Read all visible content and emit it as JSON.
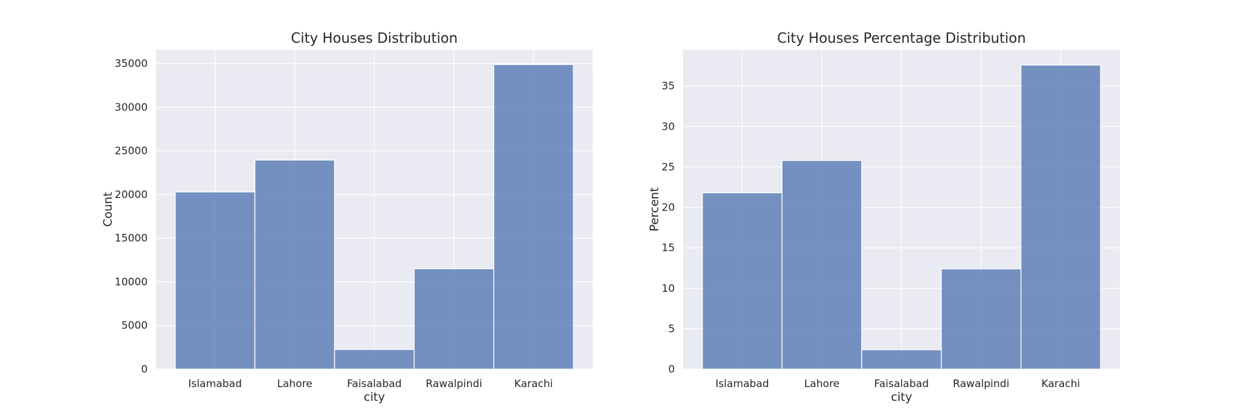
{
  "chart_data": [
    {
      "type": "bar",
      "title": "City Houses Distribution",
      "xlabel": "city",
      "ylabel": "Count",
      "categories": [
        "Islamabad",
        "Lahore",
        "Faisalabad",
        "Rawalpindi",
        "Karachi"
      ],
      "values": [
        20300,
        23950,
        2250,
        11500,
        34900
      ],
      "ylim": [
        0,
        36600
      ],
      "yticks": [
        0,
        5000,
        10000,
        15000,
        20000,
        25000,
        30000,
        35000
      ],
      "grid": true,
      "bar_color": "#4c72b0"
    },
    {
      "type": "bar",
      "title": "City Houses Percentage Distribution",
      "xlabel": "city",
      "ylabel": "Percent",
      "categories": [
        "Islamabad",
        "Lahore",
        "Faisalabad",
        "Rawalpindi",
        "Karachi"
      ],
      "values": [
        21.8,
        25.8,
        2.4,
        12.4,
        37.6
      ],
      "ylim": [
        0,
        39.5
      ],
      "yticks": [
        0,
        5,
        10,
        15,
        20,
        25,
        30,
        35
      ],
      "grid": true,
      "bar_color": "#4c72b0"
    }
  ],
  "colors": {
    "plot_background": "#eaeaf2",
    "grid": "#ffffff",
    "bar": "#4c72b0"
  }
}
